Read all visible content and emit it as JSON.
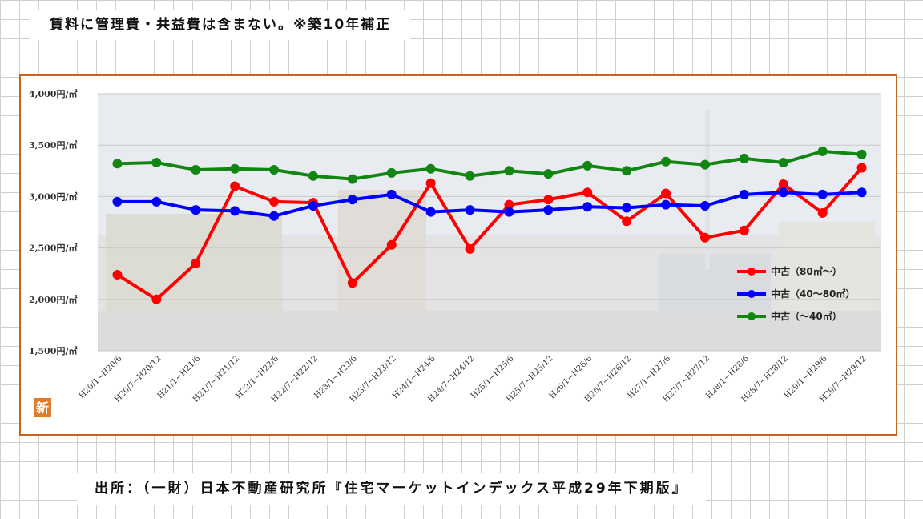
{
  "note": "賃料に管理費・共益費は含まない。※築10年補正",
  "source": "出所：（一財）日本不動産研究所『住宅マーケットインデックス平成29年下期版』",
  "logo_glyph": "新",
  "chart_data": {
    "type": "line",
    "categories": [
      "H20/1~H20/6",
      "H20/7~H20/12",
      "H21/1~H21/6",
      "H21/7~H21/12",
      "H22/1~H22/6",
      "H22/7~H22/12",
      "H23/1~H23/6",
      "H23/7~H23/12",
      "H24/1~H24/6",
      "H24/7~H24/12",
      "H25/1~H25/6",
      "H25/7~H25/12",
      "H26/1~H26/6",
      "H26/7~H26/12",
      "H27/1~H27/6",
      "H27/7~H27/12",
      "H28/1~H28/6",
      "H28/7~H28/12",
      "H29/1~H29/6",
      "H29/7~H29/12"
    ],
    "y_ticks": [
      "4,000円/㎡",
      "3,500円/㎡",
      "3,000円/㎡",
      "2,500円/㎡",
      "2,000円/㎡",
      "1,500円/㎡"
    ],
    "ylim": [
      1500,
      4000
    ],
    "grid": true,
    "legend_position": "right",
    "series": [
      {
        "name": "中古（80㎡～）",
        "color": "#ff0000",
        "values": [
          2240,
          2000,
          2350,
          3100,
          2950,
          2940,
          2160,
          2530,
          3130,
          2490,
          2920,
          2970,
          3040,
          2760,
          3030,
          2600,
          2670,
          3120,
          2840,
          3280
        ]
      },
      {
        "name": "中古（40～80㎡）",
        "color": "#0000ff",
        "values": [
          2950,
          2950,
          2870,
          2860,
          2810,
          2910,
          2970,
          3020,
          2850,
          2870,
          2850,
          2870,
          2900,
          2890,
          2920,
          2910,
          3020,
          3040,
          3020,
          3040
        ]
      },
      {
        "name": "中古（～40㎡）",
        "color": "#138513",
        "values": [
          3320,
          3330,
          3260,
          3270,
          3260,
          3200,
          3170,
          3230,
          3270,
          3200,
          3250,
          3220,
          3300,
          3250,
          3340,
          3310,
          3370,
          3330,
          3440,
          3410
        ]
      }
    ]
  }
}
